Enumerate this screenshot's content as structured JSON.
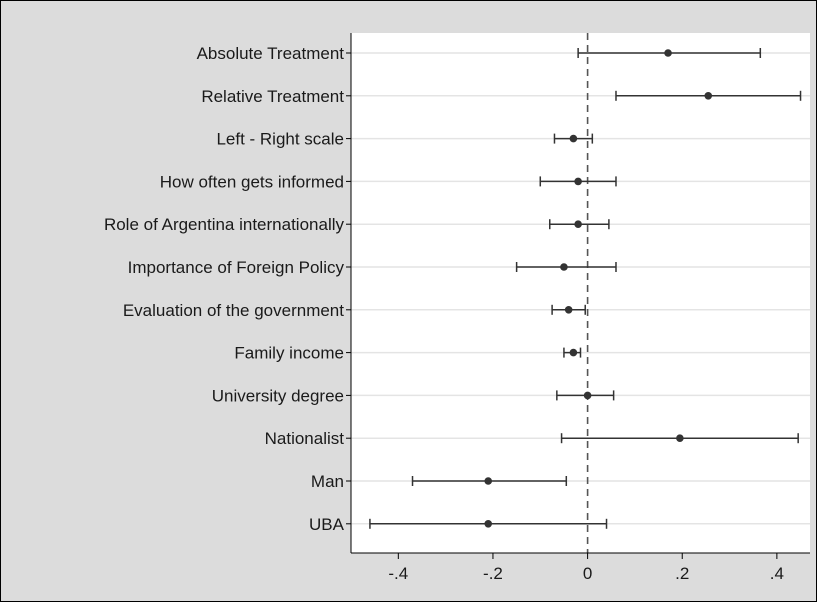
{
  "chart_data": {
    "type": "scatter",
    "subtype": "coefficient-plot",
    "title": "",
    "xlabel": "",
    "ylabel": "",
    "xlim": [
      -0.5,
      0.47
    ],
    "xticks": [
      -0.4,
      -0.2,
      0,
      0.2,
      0.4
    ],
    "xtick_labels": [
      "-.4",
      "-.2",
      "0",
      ".2",
      ".4"
    ],
    "reference_line": {
      "x": 0,
      "style": "dashed"
    },
    "grid": "horizontal",
    "legend": "none",
    "colors": {
      "background": "#dcdcdc",
      "plot_area": "#ffffff",
      "marker": "#333333",
      "grid": "#e4e4e4"
    },
    "categories": [
      "Absolute Treatment",
      "Relative Treatment",
      "Left - Right scale",
      "How often gets informed",
      "Role of Argentina internationally",
      "Importance of Foreign Policy",
      "Evaluation of the government",
      "Family income",
      "University degree",
      "Nationalist",
      "Man",
      "UBA"
    ],
    "estimates": [
      0.17,
      0.255,
      -0.03,
      -0.02,
      -0.02,
      -0.05,
      -0.04,
      -0.03,
      0.0,
      0.195,
      -0.21,
      -0.21
    ],
    "ci_lower": [
      -0.02,
      0.06,
      -0.07,
      -0.1,
      -0.08,
      -0.15,
      -0.075,
      -0.05,
      -0.065,
      -0.055,
      -0.37,
      -0.46
    ],
    "ci_upper": [
      0.365,
      0.45,
      0.01,
      0.06,
      0.045,
      0.06,
      -0.005,
      -0.015,
      0.055,
      0.445,
      -0.045,
      0.04
    ]
  }
}
